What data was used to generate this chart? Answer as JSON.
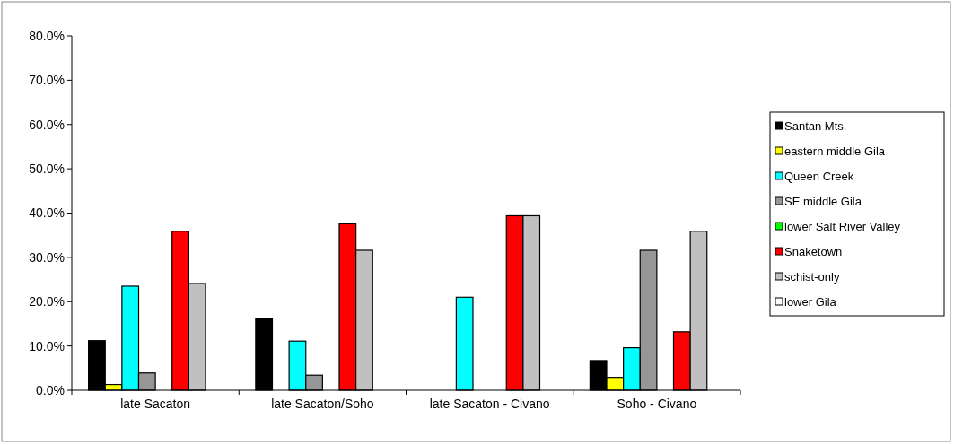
{
  "chart_data": {
    "type": "bar",
    "categories": [
      "late Sacaton",
      "late Sacaton/Soho",
      "late Sacaton - Civano",
      "Soho - Civano"
    ],
    "series": [
      {
        "name": "Santan Mts.",
        "color": "#000000",
        "values": [
          11.2,
          16.2,
          0,
          6.7
        ]
      },
      {
        "name": "eastern middle Gila",
        "color": "#ffff00",
        "values": [
          1.3,
          0,
          0,
          2.9
        ]
      },
      {
        "name": "Queen Creek",
        "color": "#00ffff",
        "values": [
          23.5,
          11.1,
          21.0,
          9.6
        ]
      },
      {
        "name": "SE middle Gila",
        "color": "#969696",
        "values": [
          3.9,
          3.4,
          0,
          31.6
        ]
      },
      {
        "name": "lower Salt River Valley",
        "color": "#00ff00",
        "values": [
          0,
          0,
          0,
          0
        ]
      },
      {
        "name": "Snaketown",
        "color": "#ff0000",
        "values": [
          35.9,
          37.6,
          39.4,
          13.2
        ]
      },
      {
        "name": "schist-only",
        "color": "#c0c0c0",
        "values": [
          24.1,
          31.6,
          39.4,
          35.9
        ]
      },
      {
        "name": "lower Gila",
        "color": "#ffffff",
        "values": [
          0,
          0,
          0,
          0
        ]
      }
    ],
    "ylim": [
      0,
      80
    ],
    "yticks": [
      {
        "value": 0,
        "label": "0.0%"
      },
      {
        "value": 10,
        "label": "10.0%"
      },
      {
        "value": 20,
        "label": "20.0%"
      },
      {
        "value": 30,
        "label": "30.0%"
      },
      {
        "value": 40,
        "label": "40.0%"
      },
      {
        "value": 50,
        "label": "50.0%"
      },
      {
        "value": 60,
        "label": "60.0%"
      },
      {
        "value": 70,
        "label": "70.0%"
      },
      {
        "value": 80,
        "label": "80.0%"
      }
    ],
    "legend": "right"
  }
}
